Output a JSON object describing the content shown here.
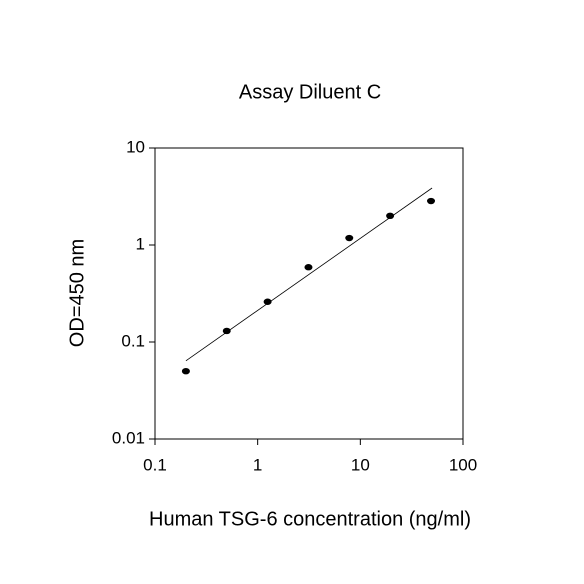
{
  "chart_data": {
    "type": "scatter",
    "title": "Assay Diluent C",
    "xlabel": "Human TSG-6 concentration (ng/ml)",
    "ylabel": "OD=450 nm",
    "x": [
      0.2,
      0.5,
      1.25,
      3.125,
      7.8,
      19.5,
      48.8
    ],
    "values": [
      0.05,
      0.13,
      0.26,
      0.59,
      1.18,
      2.0,
      2.84
    ],
    "color": "#000000",
    "fit": {
      "x": [
        0.2,
        50
      ],
      "values": [
        0.064,
        3.87
      ],
      "color": "#000000"
    },
    "xscale": "log",
    "yscale": "log",
    "xlim": [
      0.1,
      100
    ],
    "ylim": [
      0.01,
      10
    ],
    "xticks": [
      0.1,
      1,
      10,
      100
    ],
    "yticks": [
      0.01,
      0.1,
      1,
      10
    ]
  }
}
